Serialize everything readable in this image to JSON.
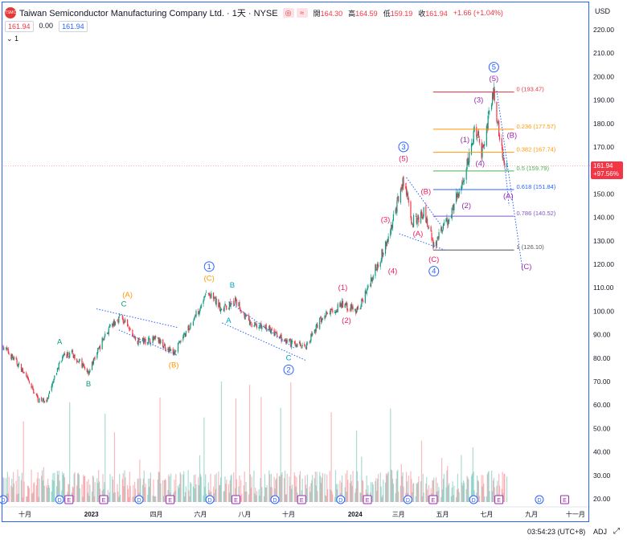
{
  "header": {
    "logo_text": "TSMC",
    "symbol": "Taiwan Semiconductor Manufacturing Company Ltd. · 1天 · NYSE",
    "btn_a": "◎",
    "btn_b": "≈",
    "ohlc": [
      {
        "label": "開",
        "value": "164.30"
      },
      {
        "label": "高",
        "value": "164.59"
      },
      {
        "label": "低",
        "value": "159.19"
      },
      {
        "label": "收",
        "value": "161.94"
      },
      {
        "label": "",
        "value": "+1.66 (+1.04%)"
      }
    ],
    "price_sell": "161.94",
    "spread": "0.00",
    "price_buy": "161.94",
    "collapse": "⌄ 1",
    "currency": "USD"
  },
  "footer": {
    "clock": "03:54:23 (UTC+8)",
    "adj": "ADJ",
    "expand_icon": "⤢"
  },
  "last_price": {
    "value": "161.94",
    "change": "+97.56%"
  },
  "chart_data": {
    "type": "candlestick",
    "title": "Taiwan Semiconductor Manufacturing Company Ltd. · 1天 · NYSE",
    "ylim": [
      20,
      225
    ],
    "y_ticks": [
      20,
      30,
      40,
      50,
      60,
      70,
      80,
      90,
      100,
      110,
      120,
      130,
      140,
      150,
      160,
      170,
      180,
      190,
      200,
      210,
      220
    ],
    "y_tick_labels": [
      "20.00",
      "30.00",
      "40.00",
      "50.00",
      "60.00",
      "70.00",
      "80.00",
      "90.00",
      "100.00",
      "110.00",
      "120.00",
      "130.00",
      "140.00",
      "150.00",
      "160.00",
      "170.00",
      "180.00",
      "190.00",
      "200.00",
      "210.00",
      "220.00"
    ],
    "x_ticks": [
      {
        "date": "2022-10-01",
        "label": "十月"
      },
      {
        "date": "2023-01-01",
        "label": "2023"
      },
      {
        "date": "2023-04-01",
        "label": "四月"
      },
      {
        "date": "2023-06-01",
        "label": "六月"
      },
      {
        "date": "2023-08-01",
        "label": "八月"
      },
      {
        "date": "2023-10-01",
        "label": "十月"
      },
      {
        "date": "2024-01-01",
        "label": "2024"
      },
      {
        "date": "2024-03-01",
        "label": "三月"
      },
      {
        "date": "2024-05-01",
        "label": "五月"
      },
      {
        "date": "2024-07-01",
        "label": "七月"
      },
      {
        "date": "2024-09-01",
        "label": "九月"
      },
      {
        "date": "2024-11-01",
        "label": "十一月"
      }
    ],
    "price_path": [
      {
        "date": "2022-09-01",
        "price": 85
      },
      {
        "date": "2022-09-25",
        "price": 76
      },
      {
        "date": "2022-10-20",
        "price": 62
      },
      {
        "date": "2022-11-01",
        "price": 62
      },
      {
        "date": "2022-11-20",
        "price": 80
      },
      {
        "date": "2022-12-05",
        "price": 82
      },
      {
        "date": "2022-12-28",
        "price": 74
      },
      {
        "date": "2023-01-20",
        "price": 90
      },
      {
        "date": "2023-02-10",
        "price": 98
      },
      {
        "date": "2023-03-05",
        "price": 87
      },
      {
        "date": "2023-04-01",
        "price": 88
      },
      {
        "date": "2023-04-25",
        "price": 82
      },
      {
        "date": "2023-05-20",
        "price": 95
      },
      {
        "date": "2023-06-10",
        "price": 108
      },
      {
        "date": "2023-07-01",
        "price": 101
      },
      {
        "date": "2023-07-20",
        "price": 104
      },
      {
        "date": "2023-08-10",
        "price": 94
      },
      {
        "date": "2023-09-01",
        "price": 93
      },
      {
        "date": "2023-09-25",
        "price": 87
      },
      {
        "date": "2023-10-25",
        "price": 85
      },
      {
        "date": "2023-11-15",
        "price": 97
      },
      {
        "date": "2023-12-15",
        "price": 103
      },
      {
        "date": "2024-01-05",
        "price": 100
      },
      {
        "date": "2024-01-25",
        "price": 115
      },
      {
        "date": "2024-02-15",
        "price": 130
      },
      {
        "date": "2024-03-08",
        "price": 156
      },
      {
        "date": "2024-03-20",
        "price": 138
      },
      {
        "date": "2024-04-05",
        "price": 142
      },
      {
        "date": "2024-04-19",
        "price": 128
      },
      {
        "date": "2024-05-10",
        "price": 140
      },
      {
        "date": "2024-06-01",
        "price": 158
      },
      {
        "date": "2024-06-15",
        "price": 178
      },
      {
        "date": "2024-06-24",
        "price": 168
      },
      {
        "date": "2024-07-11",
        "price": 193
      },
      {
        "date": "2024-07-22",
        "price": 168
      },
      {
        "date": "2024-07-29",
        "price": 162
      }
    ],
    "volume_shape": "daily volume bars, mostly 20–35 with spikes to ~70",
    "fib_levels": [
      {
        "ratio": "0",
        "value": 193.47,
        "label": "0 (193.47)",
        "color": "#f23645"
      },
      {
        "ratio": "0.236",
        "value": 177.57,
        "label": "0.236 (177.57)",
        "color": "#ff9800"
      },
      {
        "ratio": "0.382",
        "value": 167.74,
        "label": "0.382 (167.74)",
        "color": "#ff9800"
      },
      {
        "ratio": "0.5",
        "value": 159.79,
        "label": "0.5 (159.79)",
        "color": "#4caf50"
      },
      {
        "ratio": "0.618",
        "value": 151.84,
        "label": "0.618 (151.84)",
        "color": "#2962ff"
      },
      {
        "ratio": "0.786",
        "value": 140.52,
        "label": "0.786 (140.52)",
        "color": "#7e57c2"
      },
      {
        "ratio": "1",
        "value": 126.1,
        "label": "1 (126.10)",
        "color": "#555555"
      }
    ],
    "last_price": 161.94,
    "last_change": "+97.56%",
    "wave_labels": [
      {
        "text": "A",
        "date": "2022-11-18",
        "price": 86,
        "color": "#089981"
      },
      {
        "text": "B",
        "date": "2022-12-28",
        "price": 68,
        "color": "#089981"
      },
      {
        "text": "C",
        "date": "2023-02-15",
        "price": 102,
        "color": "#089981"
      },
      {
        "text": "(A)",
        "date": "2023-02-20",
        "price": 106,
        "color": "#ff9800"
      },
      {
        "text": "(B)",
        "date": "2023-04-25",
        "price": 76,
        "color": "#ff9800"
      },
      {
        "text": "(C)",
        "date": "2023-06-13",
        "price": 113,
        "color": "#ff9800"
      },
      {
        "text": "1",
        "date": "2023-06-13",
        "price": 118,
        "color": "#2962ff",
        "circled": true
      },
      {
        "text": "B",
        "date": "2023-07-15",
        "price": 110,
        "color": "#00a3c4"
      },
      {
        "text": "A",
        "date": "2023-07-10",
        "price": 95,
        "color": "#00a3c4"
      },
      {
        "text": "C",
        "date": "2023-10-01",
        "price": 79,
        "color": "#00a3c4"
      },
      {
        "text": "2",
        "date": "2023-10-01",
        "price": 74,
        "color": "#2962ff",
        "circled": true
      },
      {
        "text": "(1)",
        "date": "2023-12-15",
        "price": 109,
        "color": "#e91e63"
      },
      {
        "text": "(2)",
        "date": "2023-12-20",
        "price": 95,
        "color": "#e91e63"
      },
      {
        "text": "(3)",
        "date": "2024-02-12",
        "price": 138,
        "color": "#e91e63"
      },
      {
        "text": "(4)",
        "date": "2024-02-22",
        "price": 116,
        "color": "#e91e63"
      },
      {
        "text": "(5)",
        "date": "2024-03-08",
        "price": 164,
        "color": "#e91e63"
      },
      {
        "text": "3",
        "date": "2024-03-08",
        "price": 169,
        "color": "#2962ff",
        "circled": true
      },
      {
        "text": "(B)",
        "date": "2024-04-08",
        "price": 150,
        "color": "#e91e63"
      },
      {
        "text": "(A)",
        "date": "2024-03-28",
        "price": 132,
        "color": "#e91e63"
      },
      {
        "text": "(C)",
        "date": "2024-04-19",
        "price": 121,
        "color": "#e91e63"
      },
      {
        "text": "4",
        "date": "2024-04-19",
        "price": 116,
        "color": "#2962ff",
        "circled": true
      },
      {
        "text": "(1)",
        "date": "2024-06-01",
        "price": 172,
        "color": "#9c27b0"
      },
      {
        "text": "(2)",
        "date": "2024-06-03",
        "price": 144,
        "color": "#9c27b0"
      },
      {
        "text": "(3)",
        "date": "2024-06-20",
        "price": 189,
        "color": "#9c27b0"
      },
      {
        "text": "(4)",
        "date": "2024-06-22",
        "price": 162,
        "color": "#9c27b0"
      },
      {
        "text": "(5)",
        "date": "2024-07-11",
        "price": 198,
        "color": "#9c27b0"
      },
      {
        "text": "5",
        "date": "2024-07-11",
        "price": 203,
        "color": "#2962ff",
        "circled": true
      },
      {
        "text": "(B)",
        "date": "2024-08-05",
        "price": 174,
        "color": "#9c27b0"
      },
      {
        "text": "(A)",
        "date": "2024-07-31",
        "price": 148,
        "color": "#9c27b0"
      },
      {
        "text": "(C)",
        "date": "2024-08-25",
        "price": 118,
        "color": "#9c27b0"
      }
    ],
    "channels": [
      {
        "from": [
          "2023-01-08",
          101
        ],
        "to": [
          "2023-05-01",
          93
        ],
        "color": "#2962ff"
      },
      {
        "from": [
          "2023-02-08",
          92
        ],
        "to": [
          "2023-05-01",
          81
        ],
        "color": "#2962ff"
      },
      {
        "from": [
          "2023-07-10",
          104
        ],
        "to": [
          "2023-10-10",
          84
        ],
        "color": "#2962ff"
      },
      {
        "from": [
          "2023-07-01",
          95
        ],
        "to": [
          "2023-10-25",
          79
        ],
        "color": "#2962ff"
      },
      {
        "from": [
          "2024-03-12",
          157
        ],
        "to": [
          "2024-04-28",
          137
        ],
        "color": "#2962ff"
      },
      {
        "from": [
          "2024-03-02",
          133
        ],
        "to": [
          "2024-05-05",
          126
        ],
        "color": "#2962ff"
      },
      {
        "from": [
          "2024-07-15",
          194
        ],
        "to": [
          "2024-08-20",
          117
        ],
        "color": "#2962ff"
      },
      {
        "from": [
          "2024-07-24",
          169
        ],
        "to": [
          "2024-08-01",
          145
        ],
        "color": "#2962ff"
      }
    ],
    "event_markers": [
      {
        "date": "2022-09-01",
        "type": "D"
      },
      {
        "date": "2022-11-18",
        "type": "D"
      },
      {
        "date": "2022-12-01",
        "type": "E"
      },
      {
        "date": "2023-01-18",
        "type": "E"
      },
      {
        "date": "2023-03-08",
        "type": "D"
      },
      {
        "date": "2023-04-20",
        "type": "E"
      },
      {
        "date": "2023-06-14",
        "type": "D"
      },
      {
        "date": "2023-07-20",
        "type": "E"
      },
      {
        "date": "2023-09-12",
        "type": "D"
      },
      {
        "date": "2023-10-19",
        "type": "E"
      },
      {
        "date": "2023-12-12",
        "type": "D"
      },
      {
        "date": "2024-01-18",
        "type": "E"
      },
      {
        "date": "2024-03-14",
        "type": "D"
      },
      {
        "date": "2024-04-18",
        "type": "E"
      },
      {
        "date": "2024-06-13",
        "type": "D"
      },
      {
        "date": "2024-07-18",
        "type": "E"
      },
      {
        "date": "2024-09-12",
        "type": "D"
      },
      {
        "date": "2024-10-17",
        "type": "E"
      }
    ]
  }
}
